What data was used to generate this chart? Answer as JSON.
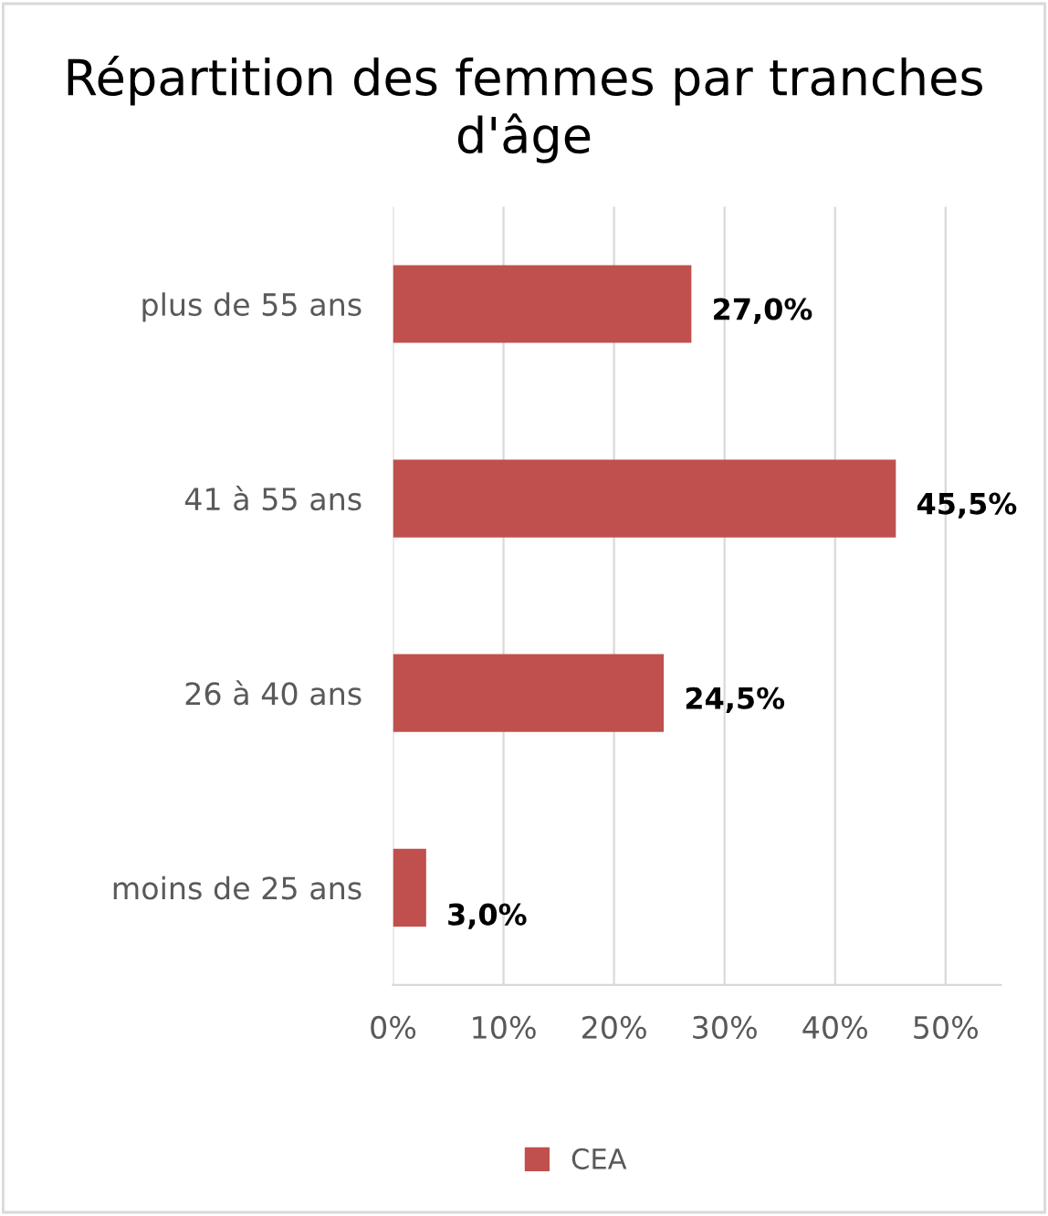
{
  "chart_data": {
    "type": "bar",
    "orientation": "horizontal",
    "title": "Répartition des femmes par tranches d'âge",
    "categories": [
      "plus de 55 ans",
      "41 à 55 ans",
      "26 à 40 ans",
      "moins de 25 ans"
    ],
    "series": [
      {
        "name": "CEA",
        "color": "#c0504d",
        "values": [
          27.0,
          45.5,
          24.5,
          3.0
        ],
        "value_labels": [
          "27,0%",
          "45,5%",
          "24,5%",
          "3,0%"
        ]
      }
    ],
    "xlim": [
      0,
      55
    ],
    "xticks": [
      {
        "value": 0,
        "label": "0%"
      },
      {
        "value": 10,
        "label": "10%"
      },
      {
        "value": 20,
        "label": "20%"
      },
      {
        "value": 30,
        "label": "30%"
      },
      {
        "value": 40,
        "label": "40%"
      },
      {
        "value": 50,
        "label": "50%"
      }
    ],
    "grid": "x",
    "legend": "bottom"
  }
}
